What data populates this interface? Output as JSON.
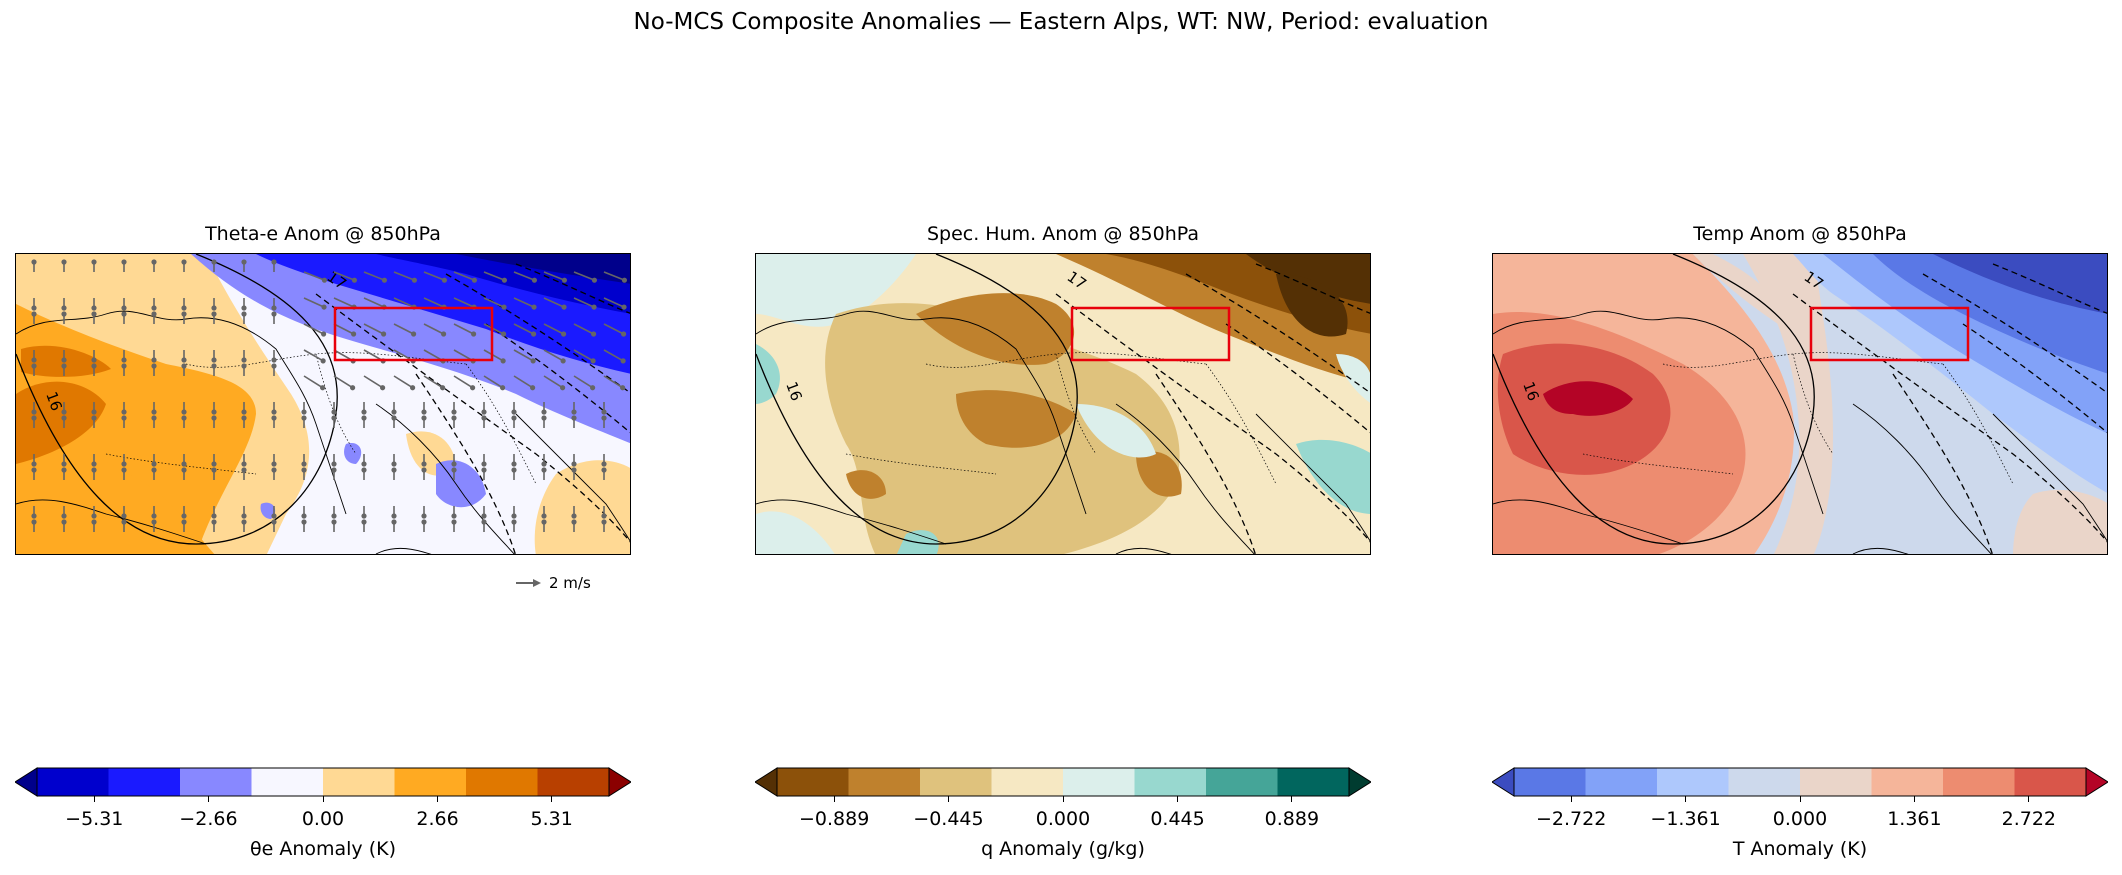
{
  "figure": {
    "title": "No-MCS Composite Anomalies — Eastern Alps, WT: NW, Period: evaluation"
  },
  "panels": [
    {
      "title": "Theta-e Anom @ 850hPa",
      "colorbar": {
        "label": "θe Anomaly (K)",
        "ticks": [
          "−5.31",
          "−2.66",
          "0.00",
          "2.66",
          "5.31"
        ],
        "tick_values": [
          -5.31,
          -2.66,
          0.0,
          2.66,
          5.31
        ],
        "range": [
          -6.64,
          6.64
        ],
        "colors": [
          "#00008b",
          "#0000cd",
          "#1a1aff",
          "#8888ff",
          "#f7f7ff",
          "#ffd994",
          "#ffaa22",
          "#e07800",
          "#b84000",
          "#8b0000"
        ]
      },
      "contour_labels": [
        "16",
        "17"
      ],
      "quiver_key": "2 m/s"
    },
    {
      "title": "Spec. Hum. Anom @ 850hPa",
      "colorbar": {
        "label": "q Anomaly (g/kg)",
        "ticks": [
          "−0.889",
          "−0.445",
          "0.000",
          "0.445",
          "0.889"
        ],
        "tick_values": [
          -0.889,
          -0.445,
          0.0,
          0.445,
          0.889
        ],
        "range": [
          -1.111,
          1.111
        ],
        "colors": [
          "#543005",
          "#8c510a",
          "#bf812d",
          "#dfc27d",
          "#f6e8c3",
          "#dcefeb",
          "#98d8cf",
          "#45a598",
          "#01665e",
          "#003c30"
        ]
      },
      "contour_labels": [
        "16",
        "17"
      ]
    },
    {
      "title": "Temp Anom @ 850hPa",
      "colorbar": {
        "label": "T Anomaly (K)",
        "ticks": [
          "−2.722",
          "−1.361",
          "0.000",
          "1.361",
          "2.722"
        ],
        "tick_values": [
          -2.722,
          -1.361,
          0.0,
          1.361,
          2.722
        ],
        "range": [
          -3.402,
          3.402
        ],
        "colors": [
          "#3b4cc0",
          "#5a78e6",
          "#82a2f8",
          "#aec8fc",
          "#cdd9ec",
          "#ead5c9",
          "#f5b59a",
          "#ed8c70",
          "#d9564a",
          "#b40426"
        ]
      },
      "contour_labels": [
        "16",
        "17"
      ]
    }
  ]
}
